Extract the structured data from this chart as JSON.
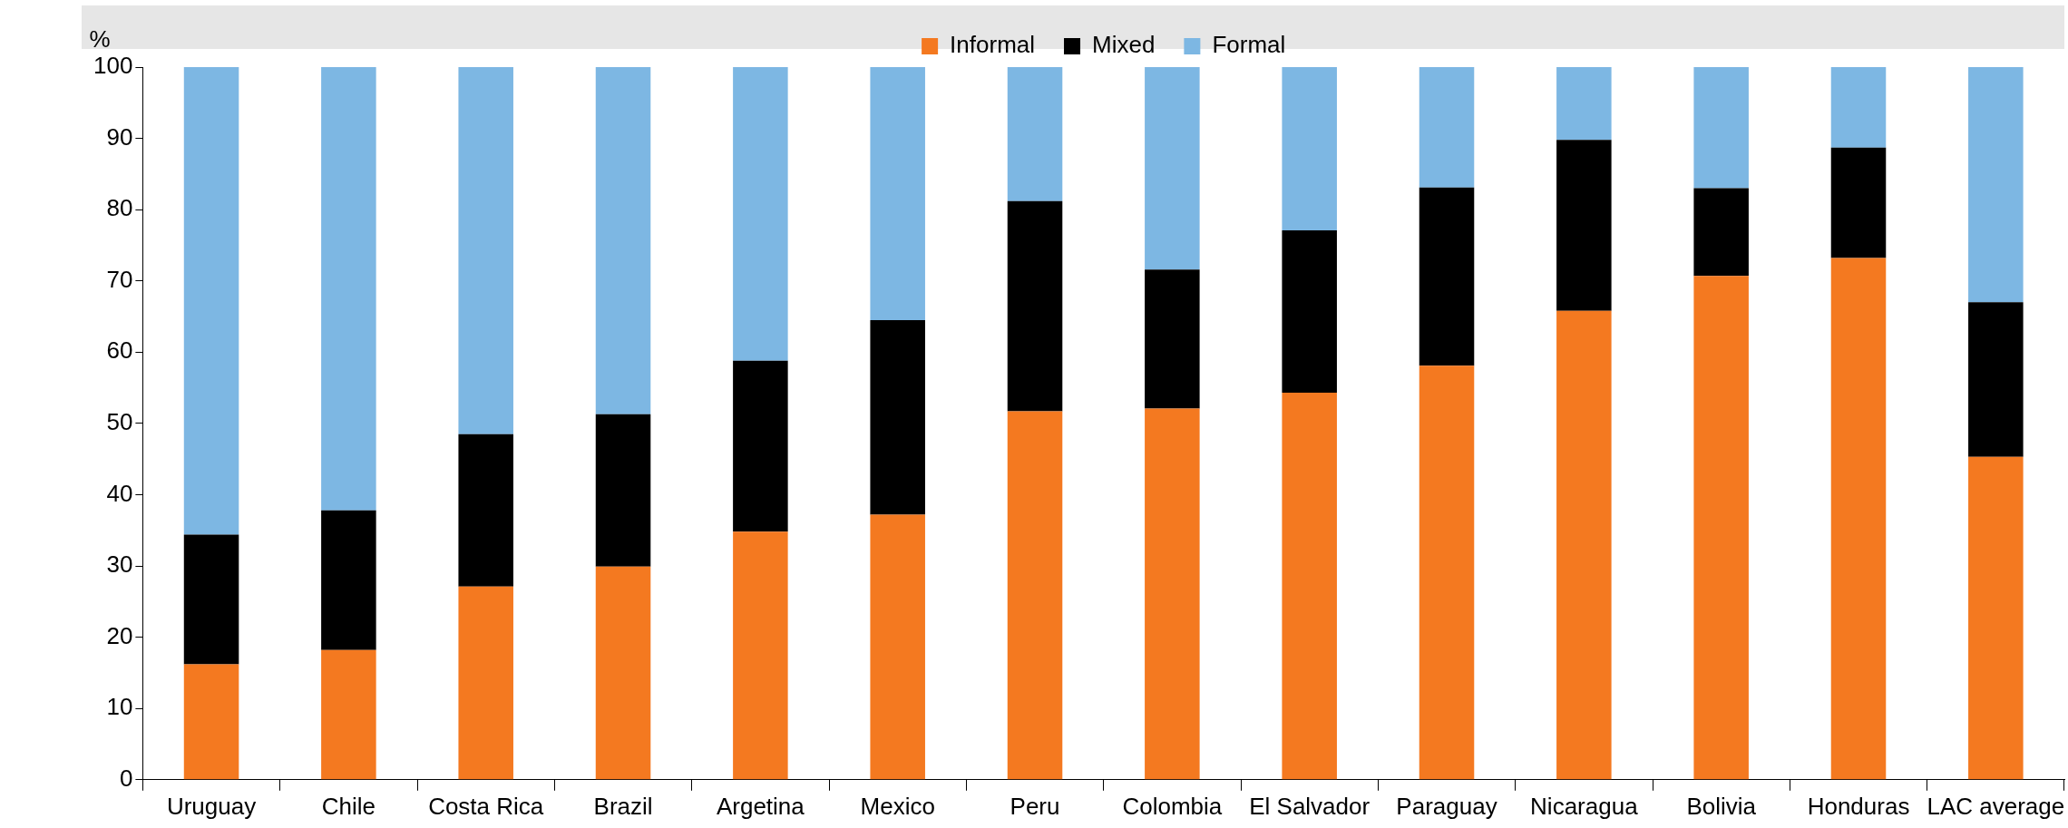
{
  "chart_data": {
    "type": "bar",
    "stacked": true,
    "ylabel": "%",
    "categories": [
      "Uruguay",
      "Chile",
      "Costa Rica",
      "Brazil",
      "Argetina",
      "Mexico",
      "Peru",
      "Colombia",
      "El Salvador",
      "Paraguay",
      "Nicaragua",
      "Bolivia",
      "Honduras",
      "LAC average"
    ],
    "series": [
      {
        "name": "Informal",
        "color": "#f47920",
        "values": [
          16.2,
          18.2,
          27.1,
          29.9,
          34.8,
          37.2,
          51.7,
          52.1,
          54.3,
          58.1,
          65.8,
          70.7,
          73.2,
          45.3
        ]
      },
      {
        "name": "Mixed",
        "color": "#000000",
        "values": [
          18.2,
          19.6,
          21.4,
          21.4,
          24.0,
          27.3,
          29.5,
          19.5,
          22.8,
          25.0,
          24.0,
          12.3,
          15.5,
          21.7
        ]
      },
      {
        "name": "Formal",
        "color": "#7db7e3",
        "values": [
          65.6,
          62.2,
          51.5,
          48.7,
          41.2,
          35.5,
          18.8,
          28.4,
          22.9,
          16.9,
          10.2,
          17.0,
          11.3,
          33.0
        ]
      }
    ],
    "ylim": [
      0,
      100
    ],
    "yticks": [
      0,
      10,
      20,
      30,
      40,
      50,
      60,
      70,
      80,
      90,
      100
    ],
    "grid": false,
    "legend": "top"
  }
}
